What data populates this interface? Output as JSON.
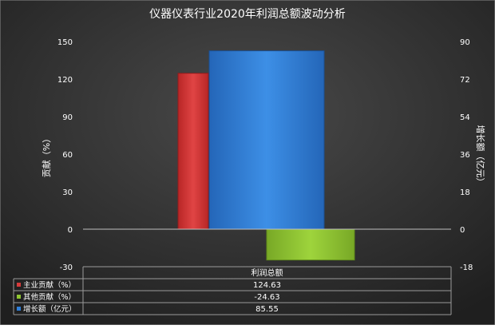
{
  "chart_data": {
    "type": "bar",
    "title": "仪器仪表行业2020年利润总额波动分析",
    "categories": [
      "利润总额"
    ],
    "left_axis": {
      "label": "贡献（%）",
      "ticks": [
        "150",
        "120",
        "90",
        "60",
        "30",
        "0",
        "-30"
      ],
      "range": [
        -30,
        150
      ]
    },
    "right_axis": {
      "label": "增长额（亿元）",
      "ticks": [
        "90",
        "72",
        "54",
        "36",
        "18",
        "0",
        "-18"
      ],
      "range": [
        -18,
        90
      ]
    },
    "series": [
      {
        "name": "主业贡献（%）",
        "values": [
          124.63
        ],
        "axis": "left",
        "color": "#d63b3b",
        "display": "124.63"
      },
      {
        "name": "其他贡献（%）",
        "values": [
          -24.63
        ],
        "axis": "left",
        "color": "#8fc631",
        "display": "-24.63"
      },
      {
        "name": "增长额（亿元）",
        "values": [
          85.55
        ],
        "axis": "right",
        "color": "#2f7fd8",
        "display": "85.55"
      }
    ],
    "grid": false,
    "legend": "data-table-bottom",
    "colors": {
      "background": "#3a3a3a",
      "text": "#ffffff",
      "zero_line": "#bfbfbf"
    }
  }
}
